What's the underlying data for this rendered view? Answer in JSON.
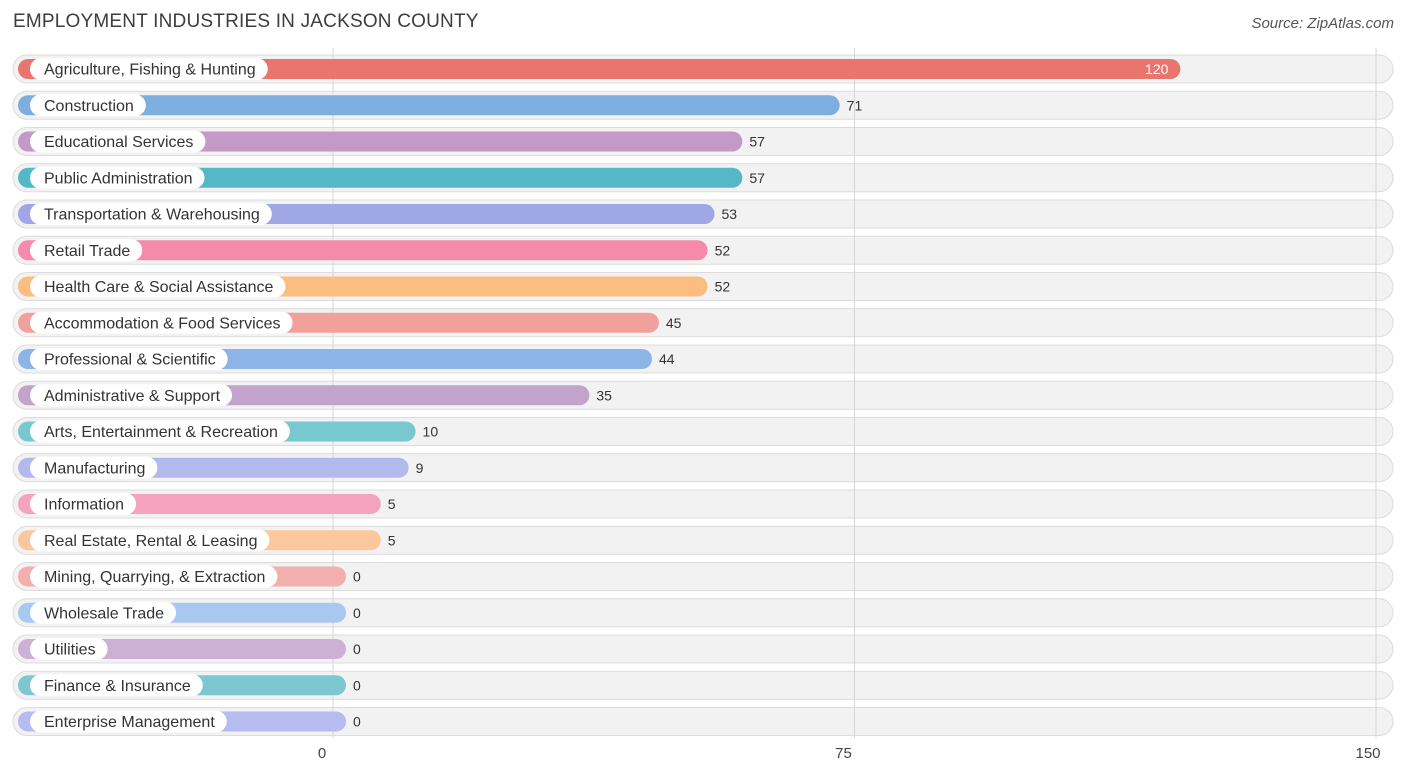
{
  "header": {
    "title": "EMPLOYMENT INDUSTRIES IN JACKSON COUNTY",
    "source": "Source: ZipAtlas.com"
  },
  "chart_data": {
    "type": "bar",
    "orientation": "horizontal",
    "title": "EMPLOYMENT INDUSTRIES IN JACKSON COUNTY",
    "xlabel": "",
    "ylabel": "",
    "xlim": [
      0,
      150
    ],
    "ticks": [
      {
        "value": 0,
        "label": "0"
      },
      {
        "value": 75,
        "label": "75"
      },
      {
        "value": 150,
        "label": "150"
      }
    ],
    "grid": true,
    "categories": [
      "Agriculture, Fishing & Hunting",
      "Construction",
      "Educational Services",
      "Public Administration",
      "Transportation & Warehousing",
      "Retail Trade",
      "Health Care & Social Assistance",
      "Accommodation & Food Services",
      "Professional & Scientific",
      "Administrative & Support",
      "Arts, Entertainment & Recreation",
      "Manufacturing",
      "Information",
      "Real Estate, Rental & Leasing",
      "Mining, Quarrying, & Extraction",
      "Wholesale Trade",
      "Utilities",
      "Finance & Insurance",
      "Enterprise Management"
    ],
    "values": [
      120,
      71,
      57,
      57,
      53,
      52,
      52,
      45,
      44,
      35,
      10,
      9,
      5,
      5,
      0,
      0,
      0,
      0,
      0
    ],
    "colors": [
      "#e8766f",
      "#7eaee0",
      "#c39ac7",
      "#55b8c6",
      "#9fa7e4",
      "#f58aab",
      "#fbbd80",
      "#f0a19c",
      "#8db4e6",
      "#c3a2cb",
      "#78c8cf",
      "#b3b9ec",
      "#f6a3c0",
      "#fbc79c",
      "#f3aeae",
      "#a9c8ef",
      "#cdb0d5",
      "#7dc8d0",
      "#b6bcef"
    ]
  }
}
